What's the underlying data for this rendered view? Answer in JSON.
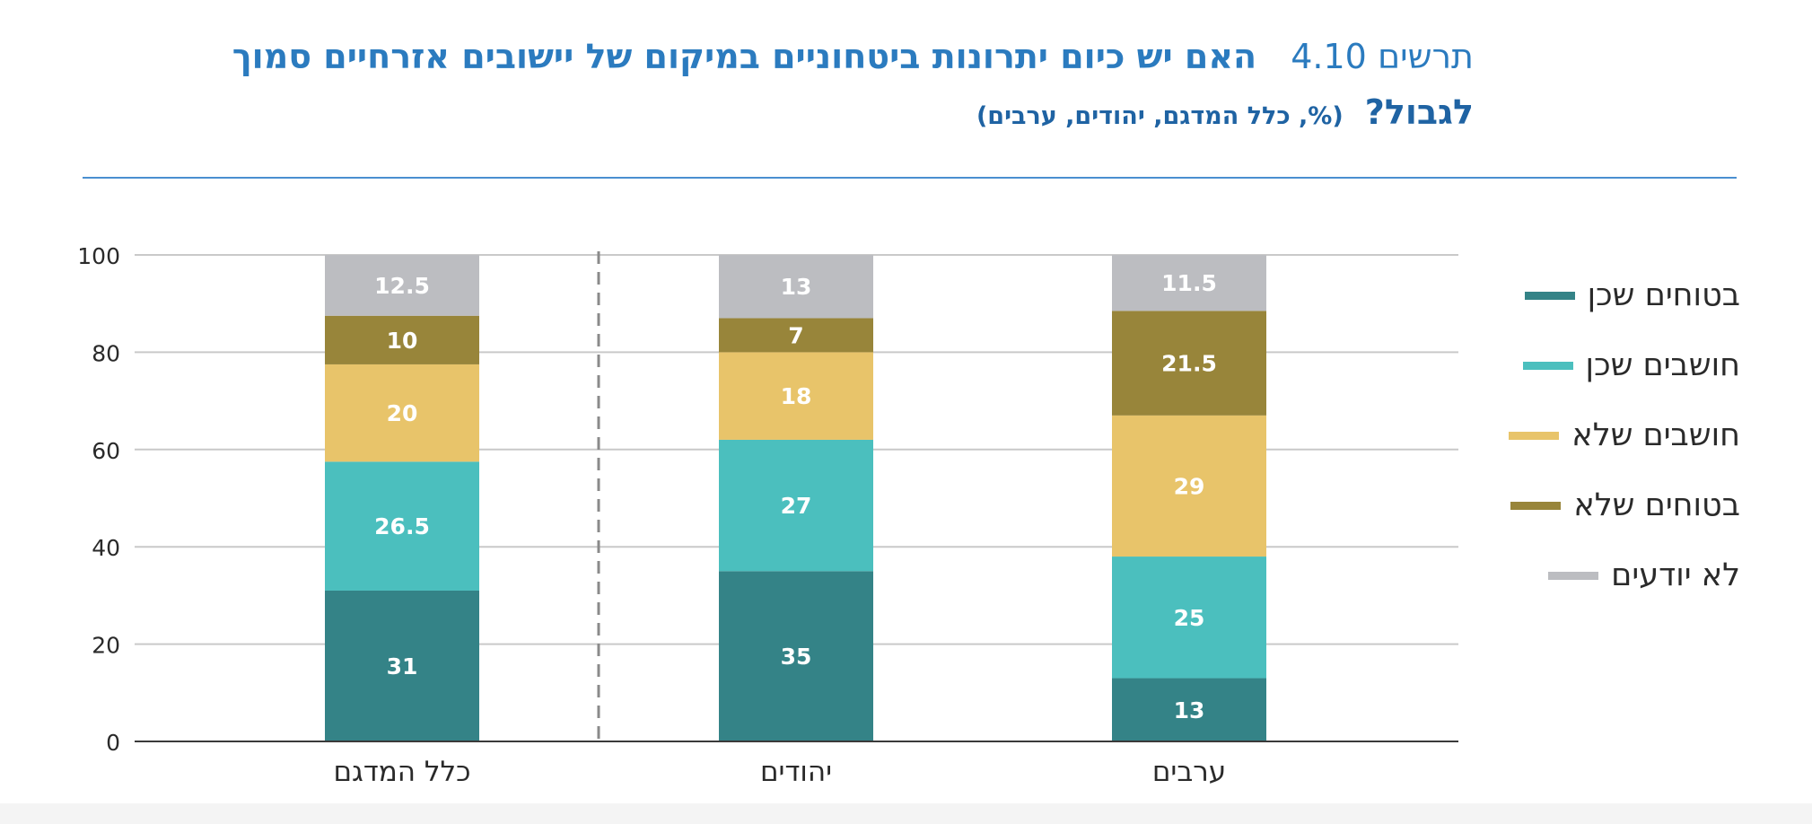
{
  "title": {
    "figure_word": "תרשים",
    "figure_number": "4.10",
    "question_part1": "האם יש כיום יתרונות ביטחוניים במיקום של יישובים אזרחיים סמוך",
    "question_part2": "לגבול?",
    "subtitle": "(%, כלל המדגם, יהודים, ערבים)"
  },
  "colors": {
    "title": "#2b7bbf",
    "rule": "#4a8fd0",
    "series": [
      "#348387",
      "#4bbfbe",
      "#e8c46a",
      "#98853a",
      "#bcbdc1"
    ]
  },
  "chart_data": {
    "type": "bar",
    "stacked": true,
    "categories": [
      "כלל המדגם",
      "יהודים",
      "ערבים"
    ],
    "series": [
      {
        "name": "בטוחים שכן",
        "values": [
          31,
          35,
          13
        ]
      },
      {
        "name": "חושבים שכן",
        "values": [
          26.5,
          27,
          25
        ]
      },
      {
        "name": "חושבים שלא",
        "values": [
          20,
          18,
          29
        ]
      },
      {
        "name": "בטוחים שלא",
        "values": [
          10,
          7,
          21.5
        ]
      },
      {
        "name": "לא יודעים",
        "values": [
          12.5,
          13,
          11.5
        ]
      }
    ],
    "data_labels": [
      [
        "31",
        "35",
        "13"
      ],
      [
        "26.5",
        "27",
        "25"
      ],
      [
        "20",
        "18",
        "29"
      ],
      [
        "10",
        "7",
        "21.5"
      ],
      [
        "12.5",
        "13",
        "11.5"
      ]
    ],
    "ylim": [
      0,
      100
    ],
    "yticks": [
      0,
      20,
      40,
      60,
      80,
      100
    ],
    "grid": true,
    "legend_position": "right"
  }
}
